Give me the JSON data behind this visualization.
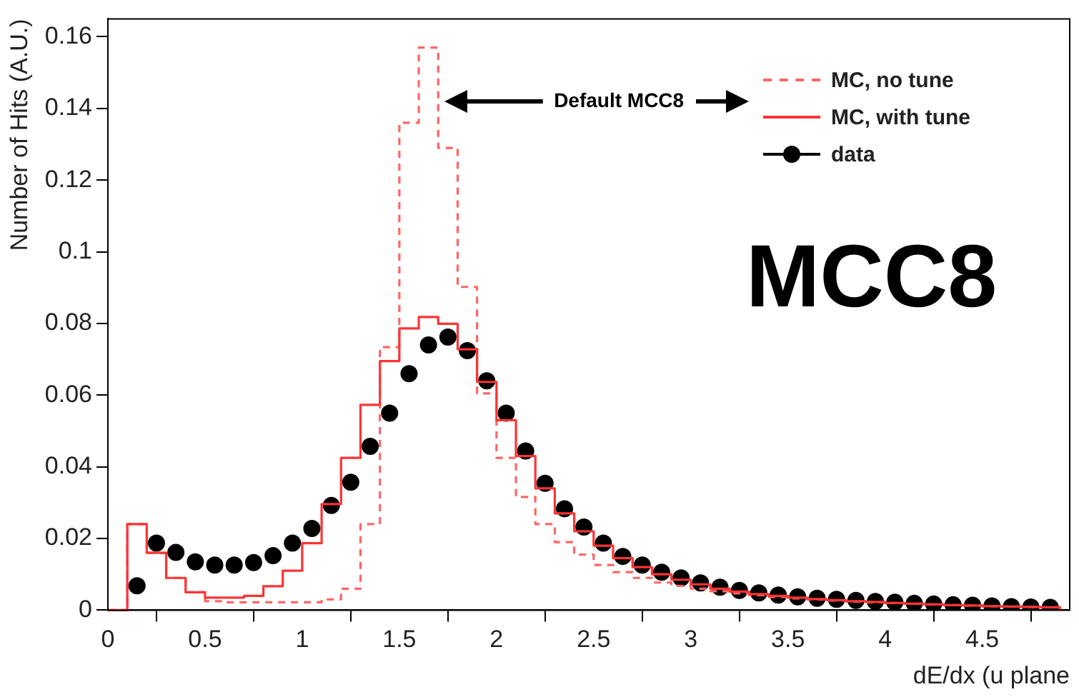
{
  "chart_data": {
    "type": "histogram",
    "ylabel": "Number of Hits (A.U.)",
    "xlabel": "dE/dx (u plane",
    "annotations": [
      "Default MCC8",
      "MCC8"
    ],
    "bins": [
      0,
      0.1,
      0.2,
      0.3,
      0.4,
      0.5,
      0.6,
      0.7,
      0.8,
      0.9,
      1,
      1.1,
      1.2,
      1.3,
      1.4,
      1.5,
      1.6,
      1.7,
      1.8,
      1.9,
      2,
      2.1,
      2.2,
      2.3,
      2.4,
      2.5,
      2.6,
      2.7,
      2.8,
      2.9,
      3,
      3.1,
      3.2,
      3.3,
      3.4,
      3.5,
      3.6,
      3.7,
      3.8,
      3.9,
      4,
      4.1,
      4.2,
      4.3,
      4.4,
      4.5,
      4.6,
      4.7,
      4.8,
      4.9
    ],
    "series": [
      {
        "name": "MC, no tune",
        "type": "histogram",
        "line_style": "dashed",
        "color": "#ff6666",
        "values": [
          0,
          0.024,
          0.016,
          0.009,
          0.005,
          0.0025,
          0.0022,
          0.0022,
          0.0022,
          0.0022,
          0.0022,
          0.003,
          0.006,
          0.024,
          0.0734,
          0.136,
          0.157,
          0.129,
          0.0902,
          0.0605,
          0.0425,
          0.0316,
          0.024,
          0.019,
          0.0155,
          0.0126,
          0.0106,
          0.009,
          0.0077,
          0.0068,
          0.006,
          0.0053,
          0.0047,
          0.0042,
          0.0037,
          0.0033,
          0.003,
          0.0027,
          0.0024,
          0.0022,
          0.002,
          0.0018,
          0.0016,
          0.0014,
          0.0013,
          0.0011,
          0.001,
          0.0009,
          0.0008
        ]
      },
      {
        "name": "MC, with tune",
        "type": "histogram",
        "line_style": "solid",
        "color": "#ff3333",
        "values": [
          0,
          0.024,
          0.016,
          0.009,
          0.005,
          0.0035,
          0.0035,
          0.004,
          0.0067,
          0.011,
          0.0187,
          0.0296,
          0.0425,
          0.0573,
          0.0695,
          0.0786,
          0.0818,
          0.0799,
          0.0728,
          0.0637,
          0.053,
          0.043,
          0.034,
          0.027,
          0.022,
          0.018,
          0.0145,
          0.012,
          0.01,
          0.0085,
          0.0072,
          0.006,
          0.0052,
          0.0045,
          0.004,
          0.0035,
          0.0031,
          0.0028,
          0.0025,
          0.0023,
          0.002,
          0.0018,
          0.0016,
          0.0014,
          0.0013,
          0.0011,
          0.001,
          0.0009,
          0.0008
        ]
      },
      {
        "name": "data",
        "type": "scatter",
        "marker": "circle",
        "color": "#000000",
        "x": [
          0.15,
          0.25,
          0.35,
          0.45,
          0.55,
          0.65,
          0.75,
          0.85,
          0.95,
          1.05,
          1.15,
          1.25,
          1.35,
          1.45,
          1.55,
          1.65,
          1.75,
          1.85,
          1.95,
          2.05,
          2.15,
          2.25,
          2.35,
          2.45,
          2.55,
          2.65,
          2.75,
          2.85,
          2.95,
          3.05,
          3.15,
          3.25,
          3.35,
          3.45,
          3.55,
          3.65,
          3.75,
          3.85,
          3.95,
          4.05,
          4.15,
          4.25,
          4.35,
          4.45,
          4.55,
          4.65,
          4.75,
          4.85
        ],
        "values": [
          0.0068,
          0.0187,
          0.0161,
          0.0135,
          0.0126,
          0.0126,
          0.0133,
          0.0152,
          0.0187,
          0.0228,
          0.0292,
          0.0357,
          0.0457,
          0.055,
          0.066,
          0.074,
          0.0762,
          0.0724,
          0.064,
          0.055,
          0.0444,
          0.0354,
          0.0283,
          0.0232,
          0.0187,
          0.015,
          0.0126,
          0.0106,
          0.009,
          0.0076,
          0.0064,
          0.0055,
          0.0048,
          0.0042,
          0.0037,
          0.0033,
          0.003,
          0.0027,
          0.0024,
          0.0022,
          0.0019,
          0.0017,
          0.0015,
          0.0014,
          0.0012,
          0.001,
          0.0009,
          0.0008
        ]
      }
    ],
    "xlim": [
      0,
      4.95
    ],
    "xticks": [
      0,
      0.5,
      1,
      1.5,
      2,
      2.5,
      3,
      3.5,
      4,
      4.5
    ],
    "ylim": [
      0,
      0.165
    ],
    "yticks": [
      0,
      0.02,
      0.04,
      0.06,
      0.08,
      0.1,
      0.12,
      0.14,
      0.16
    ],
    "legend": "top right"
  }
}
